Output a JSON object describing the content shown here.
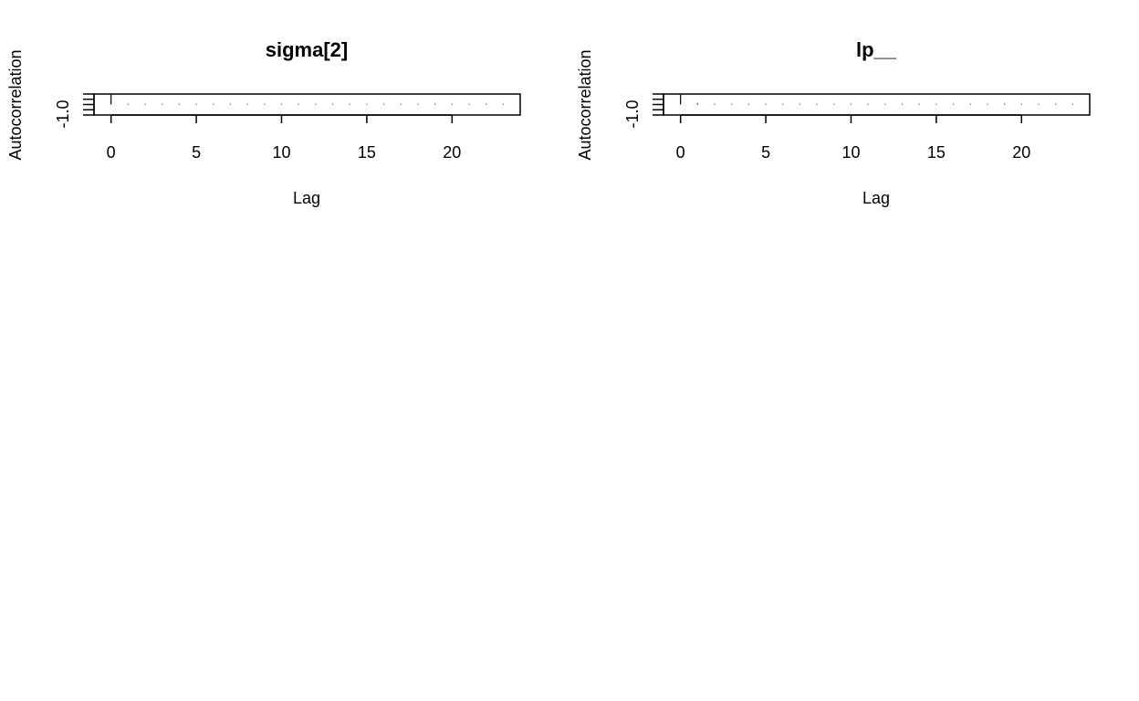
{
  "chart_data": [
    {
      "type": "bar",
      "title": "sigma[2]",
      "xlabel": "Lag",
      "ylabel": "Autocorrelation",
      "x_ticks": [
        "0",
        "5",
        "10",
        "15",
        "20"
      ],
      "y_tick_labels": [
        "-1.0"
      ],
      "xlim": [
        -1,
        24
      ],
      "ylim": [
        -1,
        1
      ],
      "grid": false,
      "lags": [
        0,
        1,
        2,
        3,
        4,
        5,
        6,
        7,
        8,
        9,
        10,
        11,
        12,
        13,
        14,
        15,
        16,
        17,
        18,
        19,
        20,
        21,
        22,
        23
      ],
      "values": [
        1.0,
        0.03,
        0.0,
        0.02,
        0.0,
        0.0,
        0.0,
        0.0,
        0.0,
        0.0,
        0.0,
        0.0,
        0.0,
        0.0,
        0.0,
        0.0,
        0.0,
        0.0,
        0.0,
        0.0,
        0.0,
        0.0,
        0.0,
        0.0
      ]
    },
    {
      "type": "bar",
      "title": "lp__",
      "xlabel": "Lag",
      "ylabel": "Autocorrelation",
      "x_ticks": [
        "0",
        "5",
        "10",
        "15",
        "20"
      ],
      "y_tick_labels": [
        "-1.0"
      ],
      "xlim": [
        -1,
        24
      ],
      "ylim": [
        -1,
        1
      ],
      "grid": false,
      "lags": [
        0,
        1,
        2,
        3,
        4,
        5,
        6,
        7,
        8,
        9,
        10,
        11,
        12,
        13,
        14,
        15,
        16,
        17,
        18,
        19,
        20,
        21,
        22,
        23
      ],
      "values": [
        1.0,
        0.1,
        0.05,
        0.0,
        0.0,
        0.0,
        0.0,
        0.0,
        0.0,
        0.0,
        0.0,
        0.0,
        0.0,
        0.0,
        0.0,
        0.0,
        0.0,
        0.0,
        0.0,
        0.0,
        0.0,
        0.03,
        0.0,
        0.02
      ]
    }
  ]
}
